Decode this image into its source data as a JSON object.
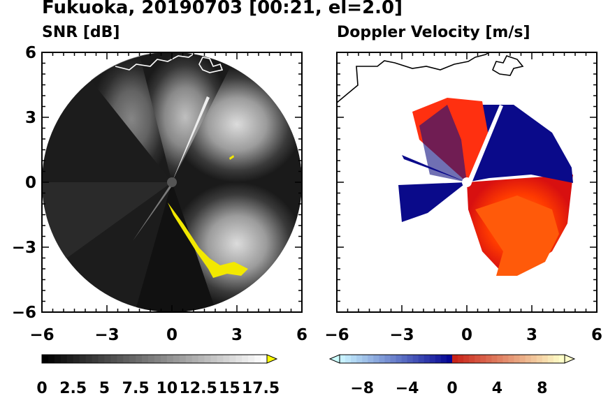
{
  "title": "Fukuoka, 20190703 [00:21, el=2.0]",
  "chart_data": [
    {
      "type": "heatmap",
      "title": "SNR [dB]",
      "xlim": [
        -6,
        6
      ],
      "ylim": [
        -6,
        6
      ],
      "xticks": [
        "−6",
        "−3",
        "0",
        "3",
        "6"
      ],
      "yticks": [
        "6",
        "3",
        "0",
        "−3",
        "−6"
      ],
      "radar_origin": [
        0,
        0
      ],
      "max_range": 6,
      "colorbar": {
        "colormap": "gray",
        "ticks": [
          "0",
          "2.5",
          "5",
          "7.5",
          "10",
          "12.5",
          "15",
          "17.5"
        ],
        "range": [
          0,
          18
        ],
        "extend": "max",
        "over_color": "#ffff00"
      }
    },
    {
      "type": "heatmap",
      "title": "Doppler Velocity [m/s]",
      "xlim": [
        -6,
        6
      ],
      "ylim": [
        -6,
        6
      ],
      "xticks": [
        "−6",
        "−3",
        "0",
        "3",
        "6"
      ],
      "yticks": [],
      "radar_origin": [
        0,
        0
      ],
      "colorbar": {
        "colormap": "blue-white-red",
        "ticks": [
          "−8",
          "−4",
          "0",
          "4",
          "8"
        ],
        "range": [
          -10,
          10
        ],
        "extend": "both"
      }
    }
  ]
}
